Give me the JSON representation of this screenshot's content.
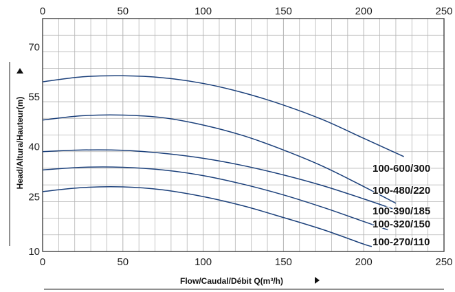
{
  "chart_data": {
    "type": "line",
    "xlabel": "Flow/Caudal/Débit Q(m³/h)",
    "ylabel": "Head/Altura/Hauteur(m)",
    "xlim": [
      0,
      250
    ],
    "ylim": [
      10,
      80
    ],
    "x_ticks": [
      "0",
      "50",
      "100",
      "150",
      "200",
      "250"
    ],
    "y_ticks": [
      "10",
      "25",
      "40",
      "55",
      "70"
    ],
    "grid": true,
    "colors": {
      "curve": "#1a3f7a",
      "grid": "#b4b4b4",
      "frame": "#333333"
    },
    "series": [
      {
        "name": "100-600/300",
        "x": [
          0,
          25,
          50,
          75,
          100,
          125,
          150,
          175,
          200,
          225
        ],
        "y": [
          61,
          62.5,
          62.8,
          62.2,
          60.5,
          57.7,
          54,
          49.5,
          44,
          38.5
        ]
      },
      {
        "name": "100-480/220",
        "x": [
          0,
          25,
          50,
          75,
          100,
          125,
          150,
          175,
          200,
          220
        ],
        "y": [
          49.5,
          50.8,
          51,
          50.2,
          48,
          44.8,
          40.5,
          35.5,
          29.5,
          24.5
        ]
      },
      {
        "name": "100-390/185",
        "x": [
          0,
          25,
          50,
          75,
          100,
          125,
          150,
          175,
          200,
          220
        ],
        "y": [
          40,
          40.5,
          40.4,
          39.5,
          38,
          35.8,
          33,
          29.7,
          25.8,
          22.5
        ]
      },
      {
        "name": "100-320/150",
        "x": [
          0,
          25,
          50,
          75,
          100,
          125,
          150,
          175,
          200,
          215
        ],
        "y": [
          34.5,
          35.3,
          35.3,
          34.5,
          32.8,
          30.2,
          27,
          23.2,
          19,
          16.5
        ]
      },
      {
        "name": "100-270/110",
        "x": [
          0,
          25,
          50,
          75,
          100,
          125,
          150,
          175,
          200,
          205
        ],
        "y": [
          28,
          29.2,
          29.4,
          28.5,
          26.5,
          23.7,
          20.2,
          16.5,
          12.2,
          11.5
        ]
      }
    ]
  }
}
